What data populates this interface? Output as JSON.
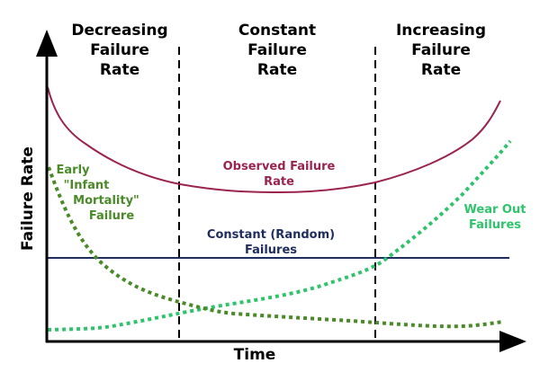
{
  "axes": {
    "ylabel": "Failure Rate",
    "xlabel": "Time"
  },
  "regions": [
    {
      "lines": [
        "Decreasing",
        "Failure",
        "Rate"
      ]
    },
    {
      "lines": [
        "Constant",
        "Failure",
        "Rate"
      ]
    },
    {
      "lines": [
        "Increasing",
        "Failure",
        "Rate"
      ]
    }
  ],
  "curves": {
    "observed": {
      "lines": [
        "Observed Failure",
        "Rate"
      ],
      "color": "#9b2350"
    },
    "constant": {
      "lines": [
        "Constant (Random)",
        "Failures"
      ],
      "color": "#1e2d5e"
    },
    "early": {
      "lines": [
        "Early",
        "\"Infant",
        "Mortality\"",
        "Failure"
      ],
      "color": "#4a8a28"
    },
    "wearout": {
      "lines": [
        "Wear Out",
        "Failures"
      ],
      "color": "#2fc46c"
    }
  }
}
